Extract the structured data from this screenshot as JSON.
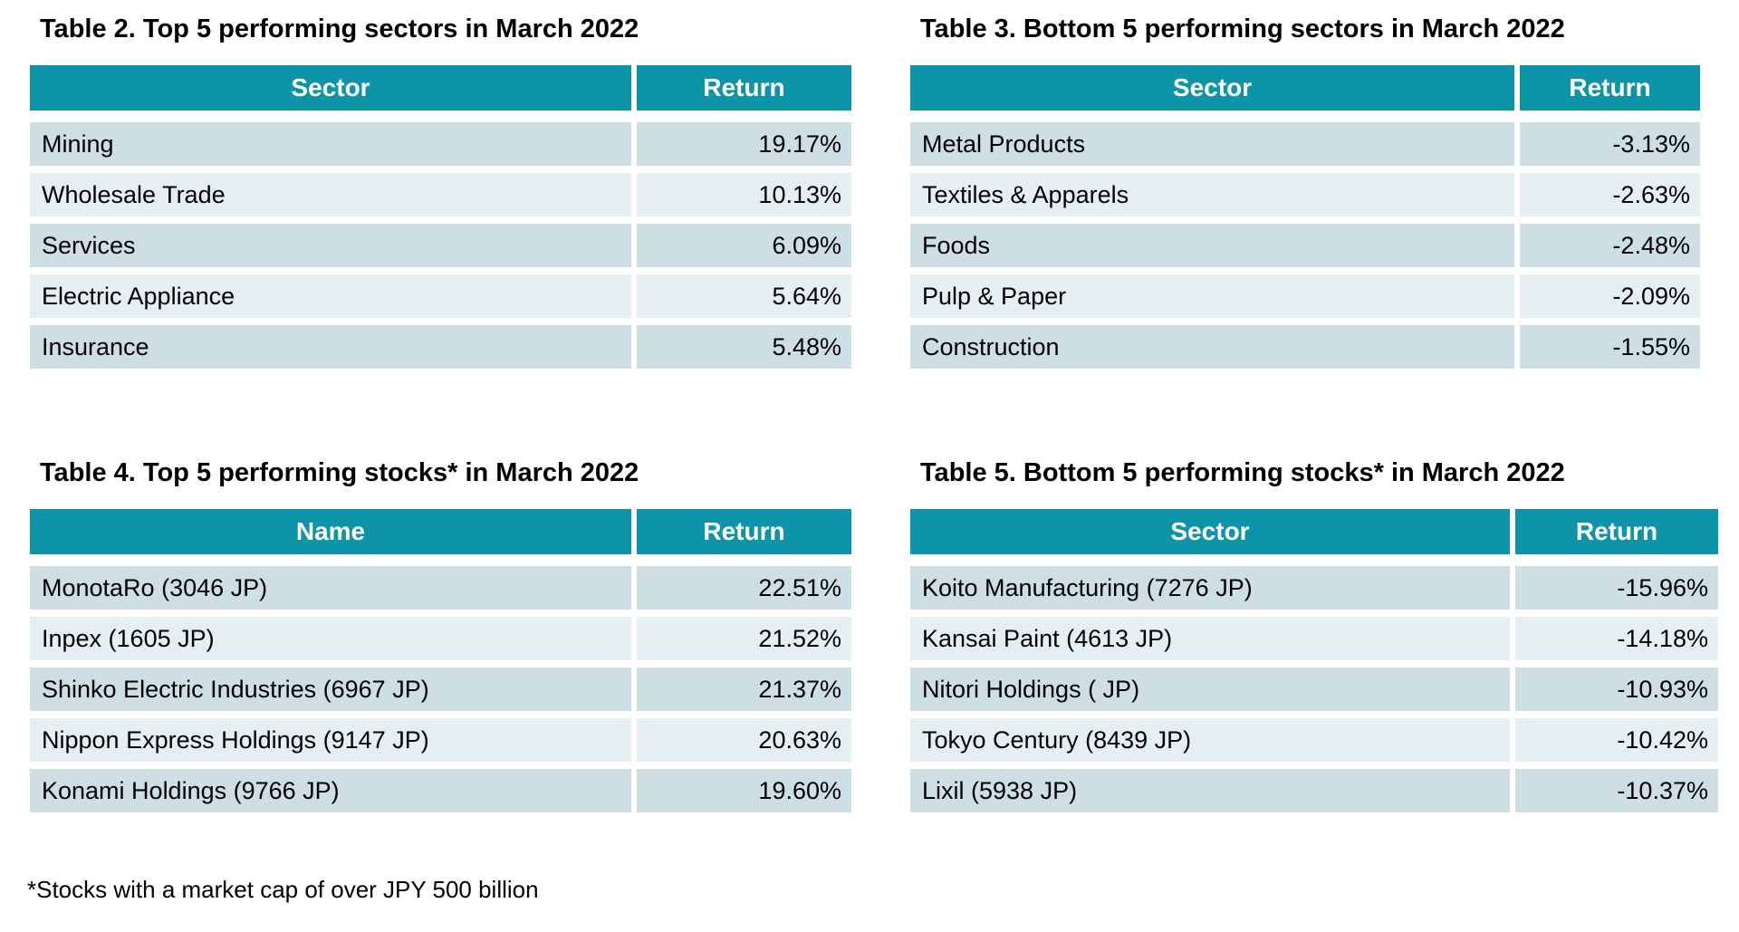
{
  "colors": {
    "header_bg": "#0D94A8",
    "header_text": "#FFFFFF",
    "row_dark": "#CDDFE5",
    "row_light": "#E5EEF1",
    "text": "#000000",
    "background": "#FFFFFF"
  },
  "tables": [
    {
      "title": "Table 2. Top 5 performing sectors in March 2022",
      "columns": [
        "Sector",
        "Return"
      ],
      "rows": [
        [
          "Mining",
          "19.17%"
        ],
        [
          "Wholesale Trade",
          "10.13%"
        ],
        [
          "Services",
          "6.09%"
        ],
        [
          "Electric Appliance",
          "5.64%"
        ],
        [
          "Insurance",
          "5.48%"
        ]
      ]
    },
    {
      "title": "Table 3. Bottom 5 performing sectors in March 2022",
      "columns": [
        "Sector",
        "Return"
      ],
      "rows": [
        [
          "Metal Products",
          "-3.13%"
        ],
        [
          "Textiles & Apparels",
          "-2.63%"
        ],
        [
          "Foods",
          "-2.48%"
        ],
        [
          "Pulp & Paper",
          "-2.09%"
        ],
        [
          "Construction",
          "-1.55%"
        ]
      ]
    },
    {
      "title": "Table 4. Top 5 performing stocks* in March 2022",
      "columns": [
        "Name",
        "Return"
      ],
      "rows": [
        [
          "MonotaRo (3046 JP)",
          "22.51%"
        ],
        [
          "Inpex (1605 JP)",
          "21.52%"
        ],
        [
          "Shinko Electric Industries (6967 JP)",
          "21.37%"
        ],
        [
          "Nippon Express Holdings (9147 JP)",
          "20.63%"
        ],
        [
          "Konami Holdings (9766 JP)",
          "19.60%"
        ]
      ]
    },
    {
      "title": "Table 5. Bottom 5 performing stocks* in March 2022",
      "columns": [
        "Sector",
        "Return"
      ],
      "rows": [
        [
          "Koito Manufacturing (7276 JP)",
          "-15.96%"
        ],
        [
          "Kansai Paint (4613 JP)",
          "-14.18%"
        ],
        [
          "Nitori Holdings ( JP)",
          "-10.93%"
        ],
        [
          "Tokyo Century (8439 JP)",
          "-10.42%"
        ],
        [
          "Lixil (5938 JP)",
          "-10.37%"
        ]
      ]
    }
  ],
  "footnote": "*Stocks with a market cap of over JPY 500 billion"
}
